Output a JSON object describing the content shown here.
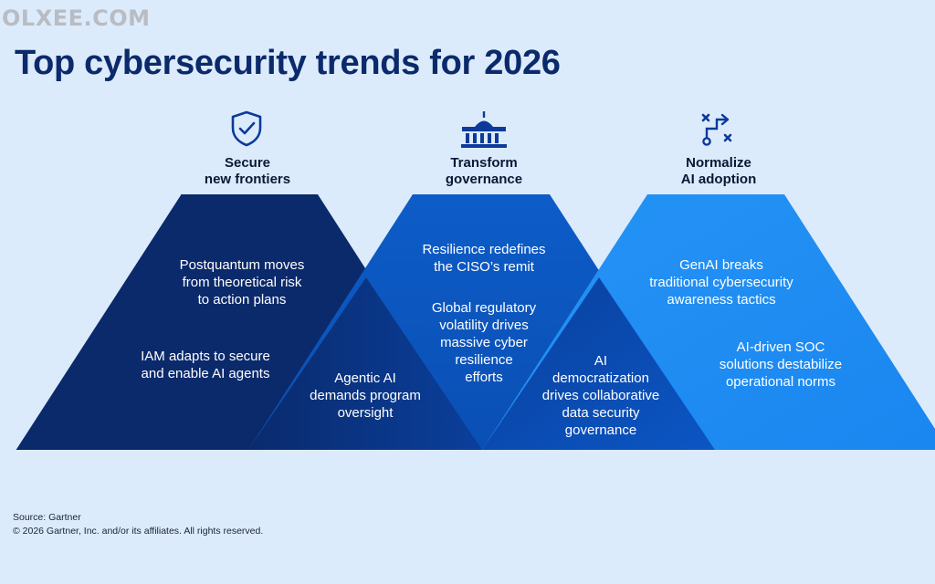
{
  "watermark": "OLXEE.COM",
  "title": "Top cybersecurity trends for 2026",
  "columns": [
    {
      "icon": "shield-check-icon",
      "heading_lines": [
        "Secure",
        "new frontiers"
      ]
    },
    {
      "icon": "government-building-icon",
      "heading_lines": [
        "Transform",
        "governance"
      ]
    },
    {
      "icon": "strategy-play-icon",
      "heading_lines": [
        "Normalize",
        "AI adoption"
      ]
    }
  ],
  "trends": {
    "postquantum": [
      "Postquantum moves",
      "from theoretical risk",
      "to action plans"
    ],
    "iam": [
      "IAM adapts to secure",
      "and enable AI agents"
    ],
    "agentic": [
      "Agentic AI",
      "demands program",
      "oversight"
    ],
    "resilience": [
      "Resilience redefines",
      "the CISO’s remit"
    ],
    "regulatory": [
      "Global regulatory",
      "volatility drives",
      "massive cyber",
      "resilience",
      "efforts"
    ],
    "democratization": [
      "AI",
      "democratization",
      "drives collaborative",
      "data security",
      "governance"
    ],
    "genai": [
      "GenAI breaks",
      "traditional cybersecurity",
      "awareness tactics"
    ],
    "soc": [
      "AI-driven SOC",
      "solutions destabilize",
      "operational norms"
    ]
  },
  "colors": {
    "background": "#dcebfb",
    "title": "#0b2a6b",
    "navy": "#0b2a6b",
    "mid_blue": "#0b56c4",
    "bright_blue": "#1f8bf2",
    "icon": "#0b3a9a"
  },
  "footer": {
    "source": "Source: Gartner",
    "copyright": "© 2026 Gartner, Inc. and/or its affiliates. All rights reserved."
  }
}
